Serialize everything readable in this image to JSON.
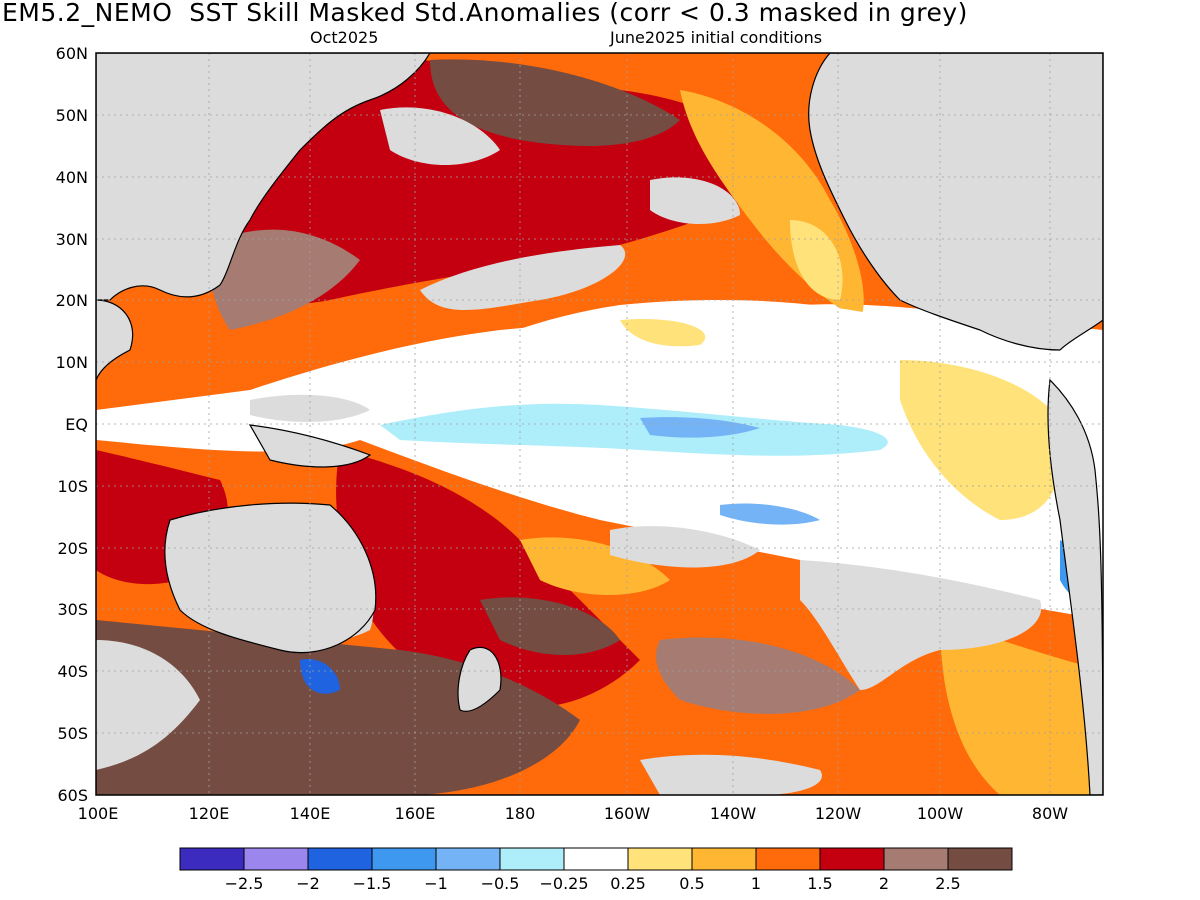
{
  "header": {
    "title": "EM5.2_NEMO  SST Skill Masked Std.Anomalies (corr < 0.3 masked in grey)",
    "subtitle_left": "Oct2025",
    "subtitle_right": "June2025 initial conditions"
  },
  "map": {
    "lat_labels": [
      "60N",
      "50N",
      "40N",
      "30N",
      "20N",
      "10N",
      "EQ",
      "10S",
      "20S",
      "30S",
      "40S",
      "50S",
      "60S"
    ],
    "lon_labels": [
      "100E",
      "120E",
      "140E",
      "160E",
      "180",
      "160W",
      "140W",
      "120W",
      "100W",
      "80W"
    ]
  },
  "legend": {
    "colors": [
      "#3b2bbf",
      "#9b86ee",
      "#1f63e0",
      "#3f98f0",
      "#74b3f6",
      "#aeeefa",
      "#ffffff",
      "#ffe27a",
      "#ffb632",
      "#ff6a0a",
      "#c40010",
      "#a67b72",
      "#744c42"
    ],
    "labels": [
      "-2.5",
      "-2",
      "-1.5",
      "-1",
      "-0.5",
      "-0.25",
      "0.25",
      "0.5",
      "1",
      "1.5",
      "2",
      "2.5"
    ]
  },
  "colors": {
    "mask_grey": "#dcdcdc",
    "coast": "#000000"
  }
}
